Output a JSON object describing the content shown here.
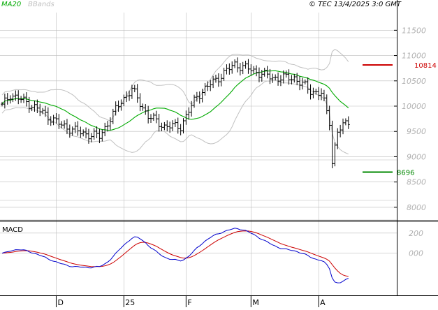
{
  "header": {
    "legend_ma": "MA20",
    "legend_bb": "BBands",
    "copyright": "© TEC 13/4/2025 3:0 GMT"
  },
  "colors": {
    "price": "#000000",
    "ma": "#00aa00",
    "bands": "#c0c0c0",
    "resistance": "#cc0000",
    "support": "#008800",
    "macd": "#0000cc",
    "signal": "#cc0000",
    "grid": "#bdbdbd",
    "frame": "#000000"
  },
  "chart_data": [
    {
      "type": "ohlc",
      "y_ticks": [
        8000,
        8500,
        9000,
        9500,
        10000,
        10500,
        11000,
        11500
      ],
      "y_tick_labels": [
        "8000",
        "8500",
        "9000",
        "9500",
        "10000",
        "10500",
        "11000",
        "11500"
      ],
      "ylim": [
        7750,
        11850
      ],
      "x_labels": [
        {
          "label": "D",
          "index": 20
        },
        {
          "label": "25",
          "index": 45
        },
        {
          "label": "F",
          "index": 68
        },
        {
          "label": "M",
          "index": 92
        },
        {
          "label": "A",
          "index": 117
        }
      ],
      "index_range": [
        0,
        135
      ],
      "resistance": {
        "value": 10814,
        "label": "10814"
      },
      "support": {
        "value": 8696,
        "label": "8696"
      },
      "series": [
        {
          "name": "MA20",
          "role": "ma"
        },
        {
          "name": "BBands",
          "role": "bands"
        }
      ]
    },
    {
      "type": "line",
      "title": "MACD",
      "y_ticks": [
        0,
        200
      ],
      "y_tick_labels": [
        "000",
        "200"
      ],
      "ylim": [
        -420,
        310
      ],
      "series": [
        {
          "name": "MACD",
          "role": "macd"
        },
        {
          "name": "Signal",
          "role": "signal"
        }
      ]
    }
  ]
}
